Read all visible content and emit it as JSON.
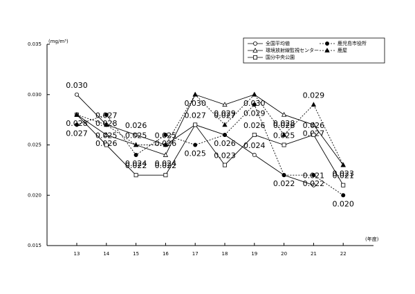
{
  "chart_data": {
    "type": "line",
    "unit": "(mg/m³)",
    "x_unit": "(年度)",
    "categories": [
      "13",
      "14",
      "15",
      "16",
      "17",
      "18",
      "19",
      "20",
      "21",
      "22"
    ],
    "ylim": [
      0.015,
      0.035
    ],
    "yticks": [
      {
        "value": 0.015,
        "label": "0.015"
      },
      {
        "value": 0.02,
        "label": "0.020"
      },
      {
        "value": 0.025,
        "label": "0.025"
      },
      {
        "value": 0.03,
        "label": "0.030"
      },
      {
        "value": 0.035,
        "label": "0.035"
      }
    ],
    "series": [
      {
        "name": "全国平均値",
        "color": "#000000",
        "marker": "circle",
        "filled": false,
        "line_style": "solid",
        "values": [
          0.03,
          0.027,
          0.026,
          0.025,
          0.027,
          0.026,
          0.024,
          0.022,
          0.021,
          null
        ],
        "value_labels": [
          "0.030",
          null,
          "0.026",
          null,
          null,
          null,
          "0.024",
          null,
          "0.021",
          null
        ]
      },
      {
        "name": "環境放射線監視センター",
        "color": "#000000",
        "marker": "triangle",
        "filled": false,
        "line_style": "solid",
        "values": [
          0.028,
          0.026,
          0.025,
          0.024,
          0.03,
          0.029,
          0.03,
          0.028,
          0.027,
          0.023
        ],
        "value_labels": [
          "0.028",
          "0.026",
          null,
          "0.024",
          "0.030",
          "0.029",
          "0.030",
          "0.028",
          "0.027",
          "0.023"
        ]
      },
      {
        "name": "国分中央公園",
        "color": "#000000",
        "marker": "square",
        "filled": false,
        "line_style": "solid",
        "values": [
          0.028,
          0.025,
          0.022,
          0.022,
          0.027,
          0.023,
          0.026,
          0.025,
          0.026,
          0.021
        ],
        "value_labels": [
          null,
          "0.025",
          "0.022",
          "0.022",
          "0.027",
          "0.023",
          "0.026",
          "0.025",
          "0.026",
          "0.021"
        ]
      },
      {
        "name": "鹿児島市役所",
        "color": "#000000",
        "marker": "circle",
        "filled": true,
        "line_style": "dotted",
        "values": [
          0.027,
          0.028,
          0.024,
          0.026,
          0.025,
          0.026,
          0.029,
          0.022,
          0.022,
          0.02
        ],
        "value_labels": [
          "0.027",
          "0.028",
          "0.024",
          "0.026",
          "0.025",
          "0.026",
          "0.029",
          "0.022",
          "0.022",
          "0.020"
        ]
      },
      {
        "name": "鹿屋",
        "color": "#000000",
        "marker": "triangle",
        "filled": true,
        "line_style": "dotted",
        "values": [
          0.028,
          0.027,
          0.025,
          0.025,
          0.03,
          0.027,
          0.03,
          0.026,
          0.029,
          0.023
        ],
        "value_labels": [
          null,
          "0.027",
          "0.025",
          "0.025",
          null,
          "0.027",
          null,
          "0.026",
          "0.029",
          null
        ]
      }
    ]
  }
}
